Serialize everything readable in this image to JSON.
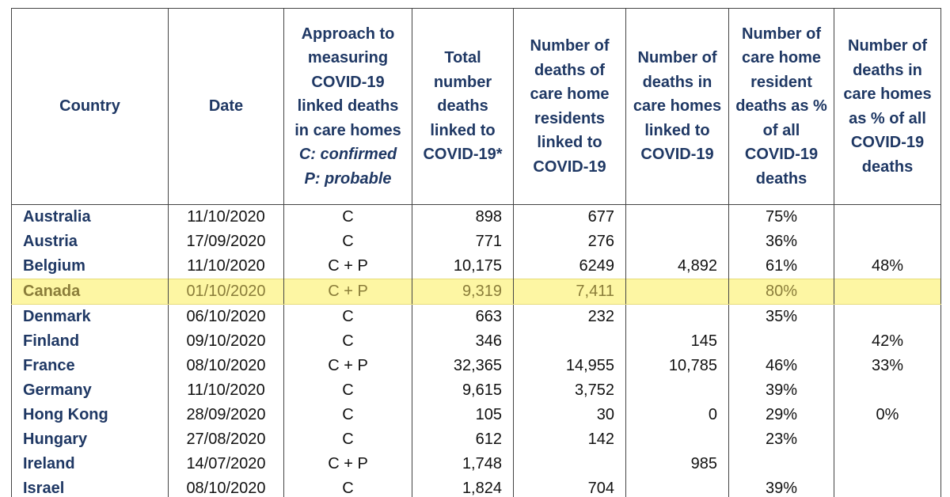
{
  "table": {
    "header": [
      "Country",
      "Date",
      "Approach to measuring COVID-19 linked deaths in care homes",
      "Total number deaths linked to COVID-19*",
      "Number of deaths of care home residents linked to COVID-19",
      "Number of deaths in care homes linked to COVID-19",
      "Number of care home resident deaths as % of all COVID-19 deaths",
      "Number of deaths in care homes as % of all COVID-19 deaths"
    ],
    "header_notes": [
      "C: confirmed",
      "P: probable"
    ],
    "rows": [
      [
        "Australia",
        "11/10/2020",
        "C",
        "898",
        "677",
        null,
        "75%",
        null
      ],
      [
        "Austria",
        "17/09/2020",
        "C",
        "771",
        "276",
        null,
        "36%",
        null
      ],
      [
        "Belgium",
        "11/10/2020",
        "C + P",
        "10,175",
        "6249",
        "4,892",
        "61%",
        "48%"
      ],
      [
        "Canada",
        "01/10/2020",
        "C + P",
        "9,319",
        "7,411",
        null,
        "80%",
        null
      ],
      [
        "Denmark",
        "06/10/2020",
        "C",
        "663",
        "232",
        null,
        "35%",
        null
      ],
      [
        "Finland",
        "09/10/2020",
        "C",
        "346",
        null,
        "145",
        null,
        "42%"
      ],
      [
        "France",
        "08/10/2020",
        "C + P",
        "32,365",
        "14,955",
        "10,785",
        "46%",
        "33%"
      ],
      [
        "Germany",
        "11/10/2020",
        "C",
        "9,615",
        "3,752",
        null,
        "39%",
        null
      ],
      [
        "Hong Kong",
        "28/09/2020",
        "C",
        "105",
        "30",
        "0",
        "29%",
        "0%"
      ],
      [
        "Hungary",
        "27/08/2020",
        "C",
        "612",
        "142",
        null,
        "23%",
        null
      ],
      [
        "Ireland",
        "14/07/2020",
        "C + P",
        "1,748",
        null,
        "985",
        null,
        null
      ],
      [
        "Israel",
        "08/10/2020",
        "C",
        "1,824",
        "704",
        null,
        "39%",
        null
      ]
    ]
  }
}
